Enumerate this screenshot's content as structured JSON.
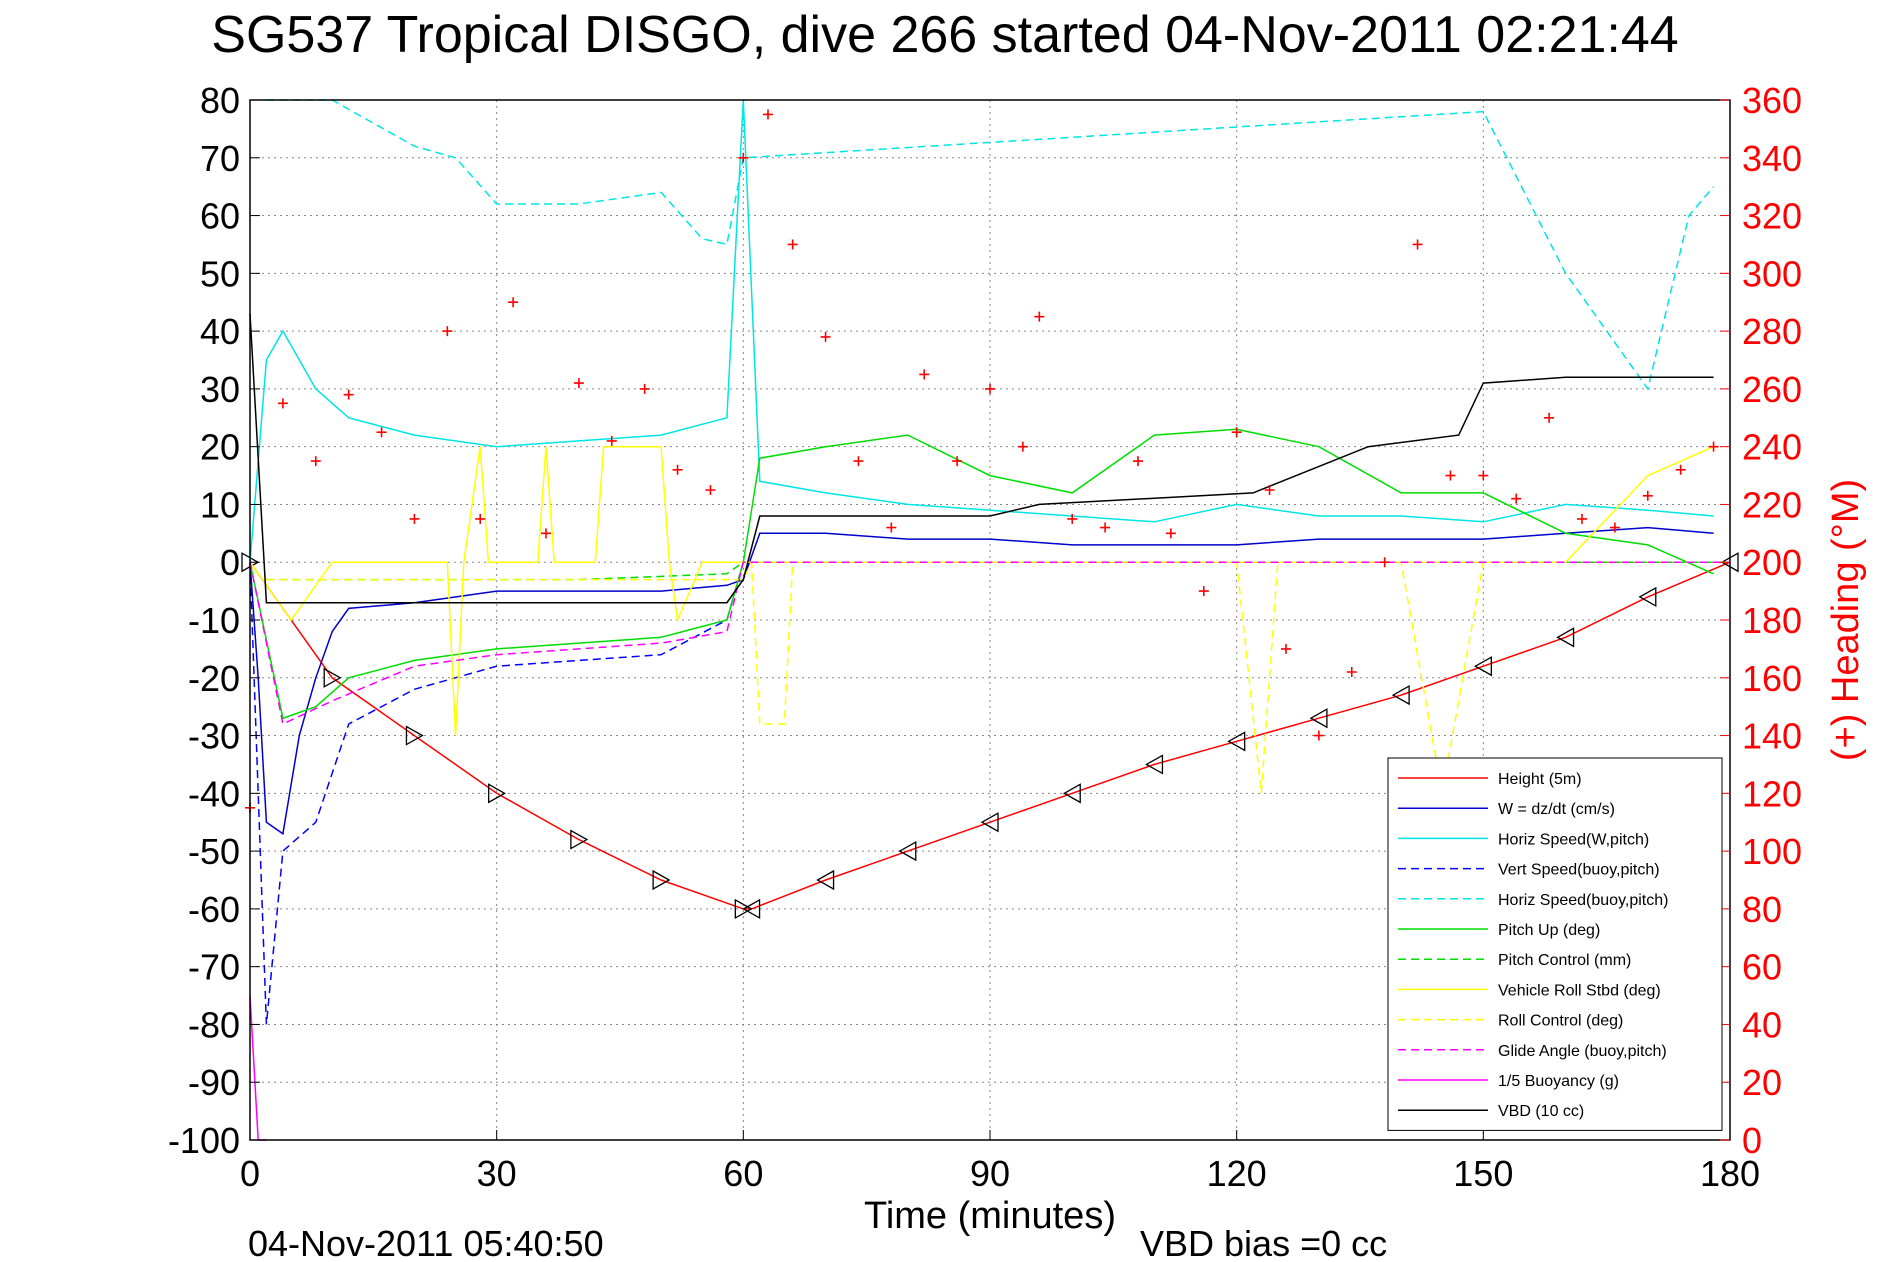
{
  "chart_data": {
    "type": "line",
    "title": "SG537 Tropical DISGO, dive 266 started 04-Nov-2011 02:21:44",
    "xlabel": "Time (minutes)",
    "ylabel_right": "(+) Heading (°M)",
    "footer_left": "04-Nov-2011 05:40:50",
    "footer_right": "VBD bias =0 cc",
    "xlim": [
      0,
      180
    ],
    "ylim": [
      -100,
      80
    ],
    "ylim_right": [
      0,
      360
    ],
    "x_ticks": [
      "0",
      "30",
      "60",
      "90",
      "120",
      "150",
      "180"
    ],
    "y_ticks": [
      "80",
      "70",
      "60",
      "50",
      "40",
      "30",
      "20",
      "10",
      "0",
      "-10",
      "-20",
      "-30",
      "-40",
      "-50",
      "-60",
      "-70",
      "-80",
      "-90",
      "-100"
    ],
    "y_right_ticks": [
      "360",
      "340",
      "320",
      "300",
      "280",
      "260",
      "240",
      "220",
      "200",
      "180",
      "160",
      "140",
      "120",
      "100",
      "80",
      "60",
      "40",
      "20",
      "0"
    ],
    "grid": true,
    "legend_position": "bottom-right",
    "colors": {
      "red": "#ff0000",
      "blue": "#0000cc",
      "cyan": "#00e5e5",
      "green": "#00dd00",
      "yellow": "#ffff00",
      "magenta": "#ff00ff",
      "black": "#000000"
    },
    "series": [
      {
        "name": "Height (5m)",
        "color": "#ff0000",
        "style": "solid",
        "x": [
          0,
          10,
          20,
          30,
          40,
          50,
          60,
          61,
          70,
          80,
          90,
          100,
          110,
          120,
          130,
          140,
          150,
          160,
          170,
          180
        ],
        "y": [
          0,
          -20,
          -30,
          -40,
          -48,
          -55,
          -60,
          -60,
          -55,
          -50,
          -45,
          -40,
          -35,
          -31,
          -27,
          -23,
          -18,
          -13,
          -6,
          0
        ]
      },
      {
        "name": "W = dz/dt (cm/s)",
        "color": "#0000cc",
        "style": "solid",
        "x": [
          0,
          1,
          2,
          4,
          6,
          8,
          10,
          12,
          20,
          30,
          40,
          50,
          58,
          60,
          62,
          70,
          80,
          90,
          100,
          110,
          120,
          130,
          140,
          150,
          160,
          170,
          178
        ],
        "y": [
          0,
          -20,
          -45,
          -47,
          -30,
          -20,
          -12,
          -8,
          -7,
          -5,
          -5,
          -5,
          -4,
          -3,
          5,
          5,
          4,
          4,
          3,
          3,
          3,
          4,
          4,
          4,
          5,
          6,
          5
        ]
      },
      {
        "name": "Horiz Speed(W,pitch)",
        "color": "#00e5e5",
        "style": "solid",
        "x": [
          0,
          2,
          4,
          8,
          12,
          20,
          30,
          40,
          50,
          58,
          60,
          62,
          70,
          80,
          90,
          100,
          110,
          120,
          130,
          140,
          150,
          160,
          170,
          178
        ],
        "y": [
          0,
          35,
          40,
          30,
          25,
          22,
          20,
          21,
          22,
          25,
          80,
          14,
          12,
          10,
          9,
          8,
          7,
          10,
          8,
          8,
          7,
          10,
          9,
          8
        ]
      },
      {
        "name": "Vert Speed(buoy,pitch)",
        "color": "#0000ff",
        "style": "dashed",
        "x": [
          0,
          2,
          4,
          8,
          12,
          20,
          30,
          40,
          50,
          58,
          60
        ],
        "y": [
          0,
          -80,
          -50,
          -45,
          -28,
          -22,
          -18,
          -17,
          -16,
          -10,
          0
        ]
      },
      {
        "name": "Horiz Speed(buoy,pitch)",
        "color": "#00e5e5",
        "style": "dashed",
        "x": [
          2,
          10,
          20,
          25,
          30,
          40,
          45,
          50,
          55,
          58,
          60,
          150,
          160,
          170,
          175,
          178
        ],
        "y": [
          80,
          80,
          72,
          70,
          62,
          62,
          63,
          64,
          56,
          55,
          70,
          78,
          50,
          30,
          60,
          65
        ]
      },
      {
        "name": "Pitch Up (deg)",
        "color": "#00dd00",
        "style": "solid",
        "x": [
          0,
          4,
          8,
          12,
          20,
          30,
          40,
          50,
          58,
          60,
          62,
          70,
          80,
          90,
          100,
          110,
          120,
          130,
          140,
          150,
          160,
          170,
          178
        ],
        "y": [
          0,
          -27,
          -25,
          -20,
          -17,
          -15,
          -14,
          -13,
          -10,
          0,
          18,
          20,
          22,
          15,
          12,
          22,
          23,
          20,
          12,
          12,
          5,
          3,
          -2
        ]
      },
      {
        "name": "Pitch Control (mm)",
        "color": "#00dd00",
        "style": "dashed",
        "x": [
          2,
          20,
          40,
          58,
          60,
          180
        ],
        "y": [
          -3,
          -3,
          -3,
          -2,
          0,
          0
        ]
      },
      {
        "name": "Vehicle Roll Stbd (deg)",
        "color": "#ffff00",
        "style": "solid",
        "x": [
          0,
          5,
          10,
          24,
          25,
          26,
          28,
          29,
          35,
          36,
          37,
          42,
          43,
          50,
          51,
          52,
          55,
          60,
          70,
          80,
          90,
          100,
          110,
          120,
          130,
          140,
          150,
          160,
          170,
          178
        ],
        "y": [
          0,
          -10,
          0,
          0,
          -30,
          0,
          20,
          0,
          0,
          20,
          0,
          0,
          20,
          20,
          0,
          -10,
          0,
          0,
          0,
          0,
          0,
          0,
          0,
          0,
          0,
          0,
          0,
          0,
          15,
          20
        ]
      },
      {
        "name": "Roll Control (deg)",
        "color": "#ffff00",
        "style": "dashed",
        "x": [
          2,
          60,
          61,
          62,
          65,
          66,
          70,
          80,
          90,
          100,
          120,
          123,
          125,
          140,
          145,
          150,
          160,
          170,
          180
        ],
        "y": [
          -3,
          -3,
          0,
          -28,
          -28,
          0,
          0,
          0,
          0,
          0,
          0,
          -40,
          0,
          0,
          -40,
          0,
          0,
          0,
          0
        ]
      },
      {
        "name": "Glide Angle (buoy,pitch)",
        "color": "#ff00ff",
        "style": "dashed",
        "x": [
          0,
          4,
          10,
          20,
          30,
          40,
          50,
          58,
          60,
          180
        ],
        "y": [
          0,
          -28,
          -24,
          -18,
          -16,
          -15,
          -14,
          -12,
          0,
          0
        ]
      },
      {
        "name": "1/5 Buoyancy (g)",
        "color": "#ff00ff",
        "style": "solid",
        "x": [
          0,
          1,
          2
        ],
        "y": [
          -75,
          -100,
          -100
        ]
      },
      {
        "name": "VBD (10 cc)",
        "color": "#000000",
        "style": "solid",
        "x": [
          0,
          2,
          20,
          40,
          58,
          60,
          62,
          90,
          96,
          122,
          136,
          147,
          150,
          160,
          175,
          178
        ],
        "y": [
          43,
          -7,
          -7,
          -7,
          -7,
          -3,
          8,
          8,
          10,
          12,
          20,
          22,
          31,
          32,
          32,
          32
        ]
      },
      {
        "name": "Heading",
        "color": "#ff0000",
        "style": "markers",
        "axis": "right",
        "x": [
          0,
          4,
          8,
          12,
          16,
          20,
          24,
          28,
          32,
          36,
          40,
          44,
          48,
          52,
          56,
          60,
          63,
          66,
          70,
          74,
          78,
          82,
          86,
          90,
          94,
          96,
          100,
          104,
          108,
          112,
          116,
          120,
          124,
          126,
          130,
          134,
          138,
          142,
          146,
          150,
          154,
          158,
          162,
          166,
          170,
          174,
          178
        ],
        "y": [
          115,
          255,
          235,
          258,
          245,
          215,
          280,
          215,
          290,
          210,
          262,
          242,
          260,
          232,
          225,
          340,
          355,
          310,
          278,
          235,
          212,
          265,
          235,
          260,
          240,
          285,
          215,
          212,
          235,
          210,
          190,
          245,
          225,
          170,
          140,
          162,
          200,
          310,
          230,
          230,
          222,
          250,
          215,
          212,
          223,
          232,
          240
        ]
      }
    ]
  }
}
